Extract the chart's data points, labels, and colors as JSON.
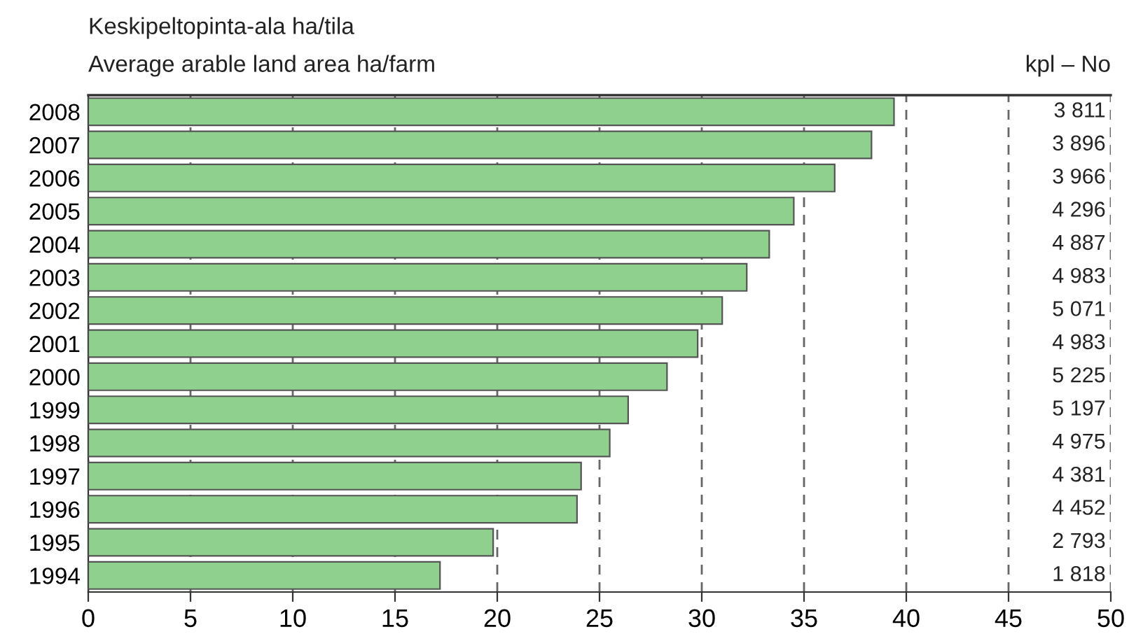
{
  "chart_data": {
    "type": "bar",
    "orientation": "horizontal",
    "title": "Keskipeltopinta-ala ha/tila",
    "subtitle": "Average arable land area ha/farm",
    "categories": [
      "2008",
      "2007",
      "2006",
      "2005",
      "2004",
      "2003",
      "2002",
      "2001",
      "2000",
      "1999",
      "1998",
      "1997",
      "1996",
      "1995",
      "1994"
    ],
    "values": [
      39.4,
      38.3,
      36.5,
      34.5,
      33.3,
      32.2,
      31.0,
      29.8,
      28.3,
      26.4,
      25.5,
      24.1,
      23.9,
      19.8,
      17.2
    ],
    "color": "#8fd08f",
    "xlim": [
      0,
      50
    ],
    "xticks": [
      0,
      5,
      10,
      15,
      20,
      25,
      30,
      35,
      40,
      45,
      50
    ],
    "grid": "x",
    "line_style": "dashed",
    "annotations": [
      "kpl – No",
      "3 811",
      "3 896",
      "3 966",
      "4 296",
      "4 887",
      "4 983",
      "5 071",
      "4 983",
      "5 225",
      "5 197",
      "4 975",
      "4 381",
      "4 452",
      "2 793",
      "1 818"
    ]
  }
}
